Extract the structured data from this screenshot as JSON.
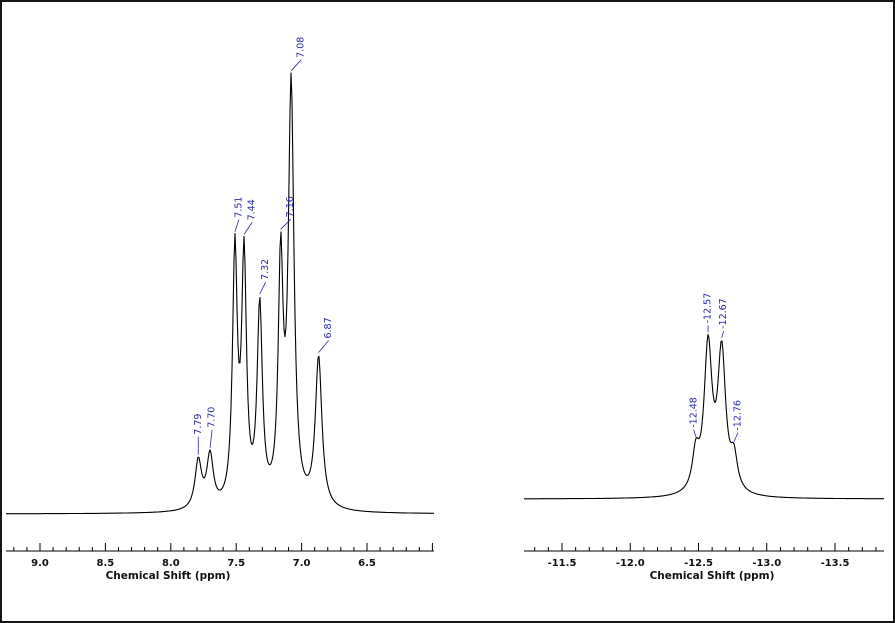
{
  "figure": {
    "background": "#ffffff",
    "border_color": "#151515"
  },
  "chart_data": [
    {
      "type": "line",
      "xlabel": "Chemical Shift (ppm)",
      "curve_color": "#000000",
      "axis_color": "#000000",
      "peak_label_color": "#2b2ba8",
      "x_axis": {
        "reversed": true,
        "ppm_left": 9.26,
        "ppm_right": 5.99,
        "minor_tick_step": 0.1,
        "major_tick_step": 0.5,
        "tick_labels": [
          {
            "value": 9.0,
            "label": "9.0"
          },
          {
            "value": 8.5,
            "label": "8.5"
          },
          {
            "value": 8.0,
            "label": "8.0"
          },
          {
            "value": 7.5,
            "label": "7.5"
          },
          {
            "value": 7.0,
            "label": "7.0"
          },
          {
            "value": 6.5,
            "label": "6.5"
          }
        ]
      },
      "peaks": [
        {
          "ppm": 7.79,
          "label": "7.79",
          "rel_height": 0.115,
          "linewidth": 0.03,
          "label_gap": 20,
          "label_dx": 0
        },
        {
          "ppm": 7.7,
          "label": "7.70",
          "rel_height": 0.125,
          "linewidth": 0.03,
          "label_gap": 20,
          "label_dx": 2
        },
        {
          "ppm": 7.51,
          "label": "7.51",
          "rel_height": 0.6,
          "linewidth": 0.022,
          "label_gap": 14,
          "label_dx": 4
        },
        {
          "ppm": 7.44,
          "label": "7.44",
          "rel_height": 0.58,
          "linewidth": 0.022,
          "label_gap": 14,
          "label_dx": 8
        },
        {
          "ppm": 7.32,
          "label": "7.32",
          "rel_height": 0.47,
          "linewidth": 0.024,
          "label_gap": 14,
          "label_dx": 6
        },
        {
          "ppm": 7.16,
          "label": "7.16",
          "rel_height": 0.56,
          "linewidth": 0.022,
          "label_gap": 12,
          "label_dx": 10
        },
        {
          "ppm": 7.08,
          "label": "7.08",
          "rel_height": 1.0,
          "linewidth": 0.026,
          "label_gap": 13,
          "label_dx": 10
        },
        {
          "ppm": 6.87,
          "label": "6.87",
          "rel_height": 0.36,
          "linewidth": 0.03,
          "label_gap": 14,
          "label_dx": 10
        }
      ]
    },
    {
      "type": "line",
      "xlabel": "Chemical Shift (ppm)",
      "curve_color": "#000000",
      "axis_color": "#000000",
      "peak_label_color": "#2b2ba8",
      "x_axis": {
        "reversed": true,
        "ppm_left": -11.21,
        "ppm_right": -13.85,
        "minor_tick_step": 0.1,
        "major_tick_step": 0.5,
        "tick_labels": [
          {
            "value": -11.5,
            "label": "-11.5"
          },
          {
            "value": -12.0,
            "label": "-12.0"
          },
          {
            "value": -12.5,
            "label": "-12.5"
          },
          {
            "value": -13.0,
            "label": "-13.0"
          },
          {
            "value": -13.5,
            "label": "-13.5"
          }
        ]
      },
      "peaks": [
        {
          "ppm": -12.48,
          "label": "-12.48",
          "rel_height": 0.25,
          "linewidth": 0.03,
          "label_gap": 9,
          "label_dx": -2
        },
        {
          "ppm": -12.57,
          "label": "-12.57",
          "rel_height": 1.0,
          "linewidth": 0.035,
          "label_gap": 9,
          "label_dx": 0
        },
        {
          "ppm": -12.67,
          "label": "-12.67",
          "rel_height": 0.96,
          "linewidth": 0.035,
          "label_gap": 9,
          "label_dx": 2
        },
        {
          "ppm": -12.76,
          "label": "-12.76",
          "rel_height": 0.22,
          "linewidth": 0.03,
          "label_gap": 11,
          "label_dx": 4
        }
      ]
    }
  ]
}
